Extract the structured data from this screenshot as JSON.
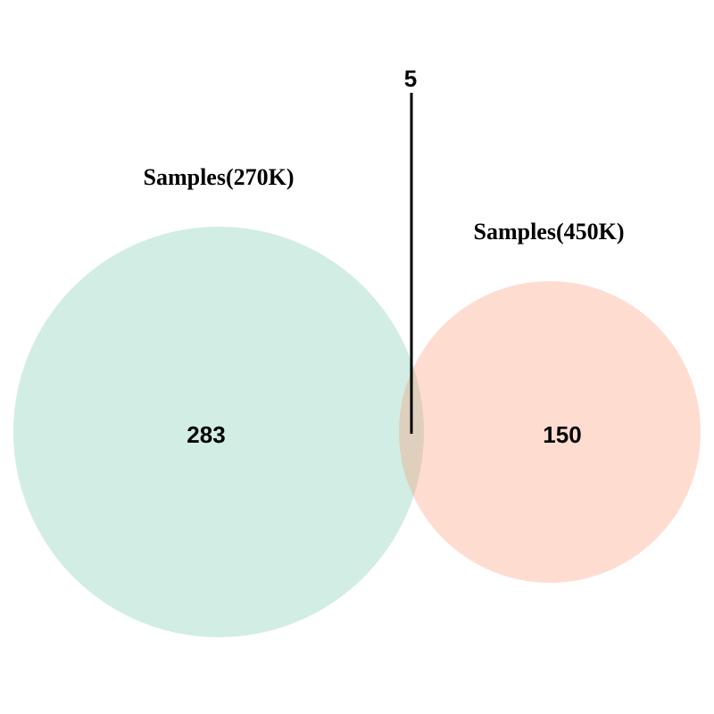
{
  "venn": {
    "sets": [
      {
        "label": "Samples(270K)",
        "color": "#66C2A5",
        "opacity": 0.3
      },
      {
        "label": "Samples(450K)",
        "color": "#FC8D62",
        "opacity": 0.3
      }
    ],
    "counts": {
      "only_270k": "283",
      "only_450k": "150",
      "intersection": "5"
    }
  }
}
